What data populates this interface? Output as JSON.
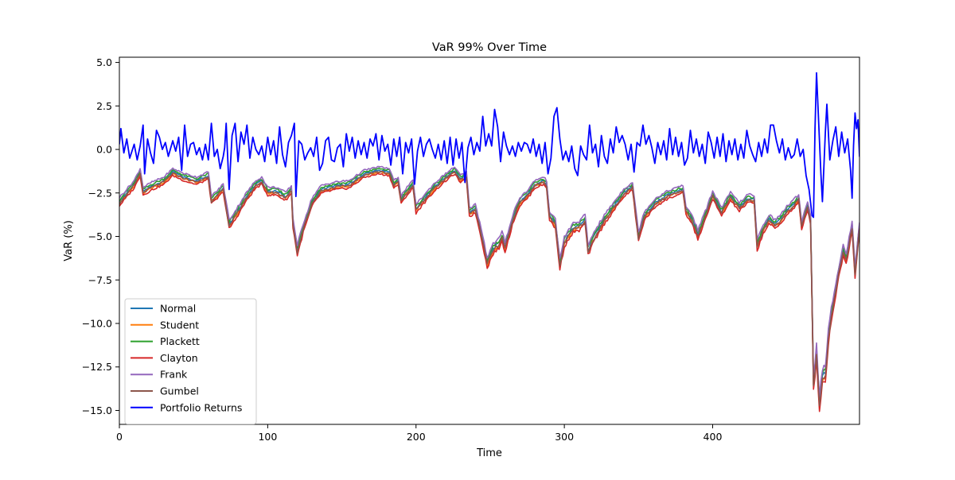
{
  "chart_data": {
    "type": "line",
    "title": "VaR 99% Over Time",
    "xlabel": "Time",
    "ylabel": "VaR (%)",
    "xlim": [
      0,
      499
    ],
    "ylim": [
      -15.8,
      5.3
    ],
    "x_ticks": [
      0,
      100,
      200,
      300,
      400
    ],
    "x_tick_labels": [
      "0",
      "100",
      "200",
      "300",
      "400"
    ],
    "y_ticks": [
      5.0,
      2.5,
      0.0,
      -2.5,
      -5.0,
      -7.5,
      -10.0,
      -12.5,
      -15.0
    ],
    "y_tick_labels": [
      "5.0",
      "2.5",
      "0.0",
      "−2.5",
      "−5.0",
      "−7.5",
      "−10.0",
      "−12.5",
      "−15.0"
    ],
    "grid": false,
    "legend_position": "lower-left",
    "series_colors": {
      "Normal": "#1f77b4",
      "Student": "#ff7f0e",
      "Plackett": "#2ca02c",
      "Clayton": "#d62728",
      "Frank": "#9467bd",
      "Gumbel": "#8c564b",
      "Portfolio Returns": "#0000ff"
    },
    "var_base_anchors": [
      [
        0,
        -3.0
      ],
      [
        6,
        -2.4
      ],
      [
        10,
        -2.0
      ],
      [
        14,
        -1.3
      ],
      [
        16,
        -2.4
      ],
      [
        22,
        -2.1
      ],
      [
        30,
        -1.8
      ],
      [
        36,
        -1.3
      ],
      [
        44,
        -1.6
      ],
      [
        52,
        -1.8
      ],
      [
        60,
        -1.5
      ],
      [
        62,
        -2.9
      ],
      [
        66,
        -2.6
      ],
      [
        70,
        -2.2
      ],
      [
        74,
        -4.3
      ],
      [
        78,
        -3.8
      ],
      [
        85,
        -2.8
      ],
      [
        92,
        -2.0
      ],
      [
        96,
        -1.8
      ],
      [
        100,
        -2.4
      ],
      [
        106,
        -2.4
      ],
      [
        112,
        -2.7
      ],
      [
        116,
        -2.3
      ],
      [
        117,
        -4.2
      ],
      [
        120,
        -5.8
      ],
      [
        124,
        -4.5
      ],
      [
        130,
        -3.0
      ],
      [
        136,
        -2.3
      ],
      [
        145,
        -2.1
      ],
      [
        155,
        -2.0
      ],
      [
        165,
        -1.4
      ],
      [
        175,
        -1.2
      ],
      [
        182,
        -1.3
      ],
      [
        185,
        -2.0
      ],
      [
        188,
        -1.8
      ],
      [
        190,
        -2.9
      ],
      [
        193,
        -2.5
      ],
      [
        198,
        -2.0
      ],
      [
        200,
        -3.4
      ],
      [
        204,
        -3.0
      ],
      [
        212,
        -2.2
      ],
      [
        220,
        -1.6
      ],
      [
        226,
        -1.2
      ],
      [
        230,
        -1.7
      ],
      [
        234,
        -1.5
      ],
      [
        236,
        -3.6
      ],
      [
        240,
        -3.4
      ],
      [
        244,
        -4.8
      ],
      [
        248,
        -6.5
      ],
      [
        252,
        -5.7
      ],
      [
        256,
        -5.4
      ],
      [
        258,
        -5.0
      ],
      [
        260,
        -5.6
      ],
      [
        266,
        -3.8
      ],
      [
        270,
        -3.0
      ],
      [
        276,
        -2.5
      ],
      [
        280,
        -2.0
      ],
      [
        286,
        -1.8
      ],
      [
        288,
        -2.0
      ],
      [
        290,
        -3.8
      ],
      [
        294,
        -4.3
      ],
      [
        297,
        -6.6
      ],
      [
        300,
        -5.3
      ],
      [
        306,
        -4.5
      ],
      [
        310,
        -4.4
      ],
      [
        314,
        -4.0
      ],
      [
        316,
        -5.8
      ],
      [
        320,
        -5.0
      ],
      [
        328,
        -3.9
      ],
      [
        334,
        -3.2
      ],
      [
        340,
        -2.5
      ],
      [
        346,
        -2.1
      ],
      [
        348,
        -3.6
      ],
      [
        350,
        -5.0
      ],
      [
        354,
        -3.8
      ],
      [
        362,
        -3.0
      ],
      [
        370,
        -2.6
      ],
      [
        376,
        -2.4
      ],
      [
        380,
        -2.3
      ],
      [
        382,
        -3.5
      ],
      [
        386,
        -4.0
      ],
      [
        390,
        -4.9
      ],
      [
        396,
        -3.6
      ],
      [
        400,
        -2.6
      ],
      [
        406,
        -3.6
      ],
      [
        412,
        -2.7
      ],
      [
        418,
        -3.3
      ],
      [
        424,
        -2.8
      ],
      [
        428,
        -2.9
      ],
      [
        430,
        -5.5
      ],
      [
        434,
        -4.6
      ],
      [
        438,
        -4.0
      ],
      [
        442,
        -4.3
      ],
      [
        446,
        -4.0
      ],
      [
        450,
        -3.5
      ],
      [
        454,
        -3.2
      ],
      [
        458,
        -2.8
      ],
      [
        460,
        -4.4
      ],
      [
        464,
        -3.2
      ],
      [
        466,
        -4.0
      ],
      [
        468,
        -13.5
      ],
      [
        470,
        -11.6
      ],
      [
        472,
        -14.6
      ],
      [
        474,
        -13.0
      ],
      [
        476,
        -12.9
      ],
      [
        478,
        -10.8
      ],
      [
        480,
        -9.5
      ],
      [
        484,
        -7.5
      ],
      [
        488,
        -5.8
      ],
      [
        490,
        -6.3
      ],
      [
        494,
        -4.4
      ],
      [
        496,
        -7.0
      ],
      [
        499,
        -4.4
      ]
    ],
    "var_spread": [
      0.0,
      -0.15,
      0.15,
      -0.3,
      0.3,
      -0.1
    ],
    "portfolio_anchors": [
      [
        0,
        0.3
      ],
      [
        1,
        1.2
      ],
      [
        3,
        -0.2
      ],
      [
        5,
        0.6
      ],
      [
        7,
        -0.5
      ],
      [
        10,
        0.3
      ],
      [
        12,
        -0.6
      ],
      [
        14,
        0.2
      ],
      [
        16,
        1.4
      ],
      [
        17,
        -1.4
      ],
      [
        19,
        0.6
      ],
      [
        21,
        -0.2
      ],
      [
        23,
        -0.8
      ],
      [
        25,
        1.1
      ],
      [
        27,
        0.7
      ],
      [
        29,
        0.0
      ],
      [
        31,
        0.4
      ],
      [
        33,
        -0.4
      ],
      [
        36,
        0.5
      ],
      [
        38,
        -0.1
      ],
      [
        40,
        0.7
      ],
      [
        42,
        -1.2
      ],
      [
        44,
        1.4
      ],
      [
        46,
        -0.4
      ],
      [
        48,
        0.3
      ],
      [
        50,
        0.4
      ],
      [
        52,
        -0.3
      ],
      [
        54,
        0.1
      ],
      [
        56,
        -0.6
      ],
      [
        58,
        0.3
      ],
      [
        60,
        -0.6
      ],
      [
        62,
        1.5
      ],
      [
        64,
        -0.4
      ],
      [
        66,
        0.0
      ],
      [
        68,
        -1.1
      ],
      [
        70,
        -0.4
      ],
      [
        71,
        0.1
      ],
      [
        72,
        1.5
      ],
      [
        74,
        -2.3
      ],
      [
        76,
        0.8
      ],
      [
        78,
        1.5
      ],
      [
        80,
        -0.7
      ],
      [
        82,
        1.0
      ],
      [
        84,
        0.3
      ],
      [
        86,
        1.4
      ],
      [
        88,
        -0.5
      ],
      [
        90,
        0.7
      ],
      [
        92,
        0.0
      ],
      [
        94,
        -0.3
      ],
      [
        96,
        0.2
      ],
      [
        98,
        -0.7
      ],
      [
        100,
        0.7
      ],
      [
        102,
        -0.3
      ],
      [
        104,
        0.5
      ],
      [
        106,
        -0.8
      ],
      [
        108,
        1.3
      ],
      [
        110,
        -0.3
      ],
      [
        112,
        -1.0
      ],
      [
        114,
        0.4
      ],
      [
        116,
        0.8
      ],
      [
        118,
        1.5
      ],
      [
        119,
        -2.7
      ],
      [
        121,
        0.5
      ],
      [
        123,
        0.3
      ],
      [
        125,
        -0.6
      ],
      [
        127,
        -0.2
      ],
      [
        129,
        0.1
      ],
      [
        131,
        -0.4
      ],
      [
        133,
        0.7
      ],
      [
        135,
        -1.2
      ],
      [
        137,
        -0.8
      ],
      [
        139,
        0.5
      ],
      [
        141,
        0.7
      ],
      [
        143,
        -0.6
      ],
      [
        145,
        -0.7
      ],
      [
        147,
        0.1
      ],
      [
        149,
        0.3
      ],
      [
        151,
        -1.0
      ],
      [
        153,
        0.9
      ],
      [
        155,
        -0.1
      ],
      [
        157,
        0.7
      ],
      [
        159,
        -0.5
      ],
      [
        161,
        0.5
      ],
      [
        163,
        -0.3
      ],
      [
        165,
        0.4
      ],
      [
        167,
        -0.5
      ],
      [
        169,
        0.6
      ],
      [
        171,
        0.2
      ],
      [
        173,
        0.9
      ],
      [
        175,
        -0.6
      ],
      [
        177,
        0.8
      ],
      [
        179,
        -0.1
      ],
      [
        181,
        0.3
      ],
      [
        183,
        -0.9
      ],
      [
        185,
        0.6
      ],
      [
        187,
        -0.4
      ],
      [
        189,
        0.7
      ],
      [
        191,
        -1.4
      ],
      [
        193,
        0.4
      ],
      [
        195,
        -0.2
      ],
      [
        197,
        0.6
      ],
      [
        199,
        -2.0
      ],
      [
        201,
        -0.1
      ],
      [
        203,
        0.7
      ],
      [
        205,
        -0.4
      ],
      [
        207,
        0.3
      ],
      [
        209,
        0.6
      ],
      [
        211,
        0.0
      ],
      [
        213,
        -0.5
      ],
      [
        215,
        0.3
      ],
      [
        217,
        -0.6
      ],
      [
        219,
        0.5
      ],
      [
        221,
        -0.8
      ],
      [
        223,
        0.7
      ],
      [
        225,
        -0.9
      ],
      [
        227,
        0.6
      ],
      [
        229,
        -0.5
      ],
      [
        231,
        0.4
      ],
      [
        233,
        -1.9
      ],
      [
        235,
        0.1
      ],
      [
        237,
        0.7
      ],
      [
        239,
        -0.3
      ],
      [
        241,
        0.4
      ],
      [
        243,
        -0.1
      ],
      [
        245,
        1.9
      ],
      [
        247,
        0.2
      ],
      [
        249,
        0.9
      ],
      [
        251,
        0.2
      ],
      [
        253,
        2.3
      ],
      [
        255,
        1.3
      ],
      [
        257,
        -0.7
      ],
      [
        259,
        1.0
      ],
      [
        261,
        0.2
      ],
      [
        263,
        -0.3
      ],
      [
        265,
        0.2
      ],
      [
        267,
        -0.4
      ],
      [
        269,
        0.4
      ],
      [
        271,
        -0.1
      ],
      [
        273,
        0.4
      ],
      [
        275,
        0.3
      ],
      [
        277,
        -0.2
      ],
      [
        279,
        0.6
      ],
      [
        281,
        -0.4
      ],
      [
        283,
        0.3
      ],
      [
        285,
        -0.8
      ],
      [
        287,
        0.4
      ],
      [
        289,
        -1.4
      ],
      [
        291,
        -0.5
      ],
      [
        293,
        1.9
      ],
      [
        295,
        2.4
      ],
      [
        297,
        0.6
      ],
      [
        299,
        -0.6
      ],
      [
        301,
        -0.1
      ],
      [
        303,
        -0.7
      ],
      [
        305,
        0.2
      ],
      [
        307,
        -1.1
      ],
      [
        309,
        -1.5
      ],
      [
        311,
        0.2
      ],
      [
        313,
        -0.3
      ],
      [
        315,
        -0.6
      ],
      [
        317,
        1.4
      ],
      [
        319,
        -0.2
      ],
      [
        321,
        0.3
      ],
      [
        323,
        -1.0
      ],
      [
        325,
        0.8
      ],
      [
        327,
        -0.4
      ],
      [
        329,
        -0.8
      ],
      [
        331,
        0.6
      ],
      [
        333,
        -0.2
      ],
      [
        335,
        1.3
      ],
      [
        337,
        0.4
      ],
      [
        339,
        0.8
      ],
      [
        341,
        0.3
      ],
      [
        343,
        -0.6
      ],
      [
        345,
        0.3
      ],
      [
        347,
        -1.3
      ],
      [
        349,
        0.4
      ],
      [
        351,
        0.2
      ],
      [
        353,
        1.4
      ],
      [
        355,
        0.3
      ],
      [
        357,
        0.8
      ],
      [
        359,
        0.1
      ],
      [
        361,
        -0.8
      ],
      [
        363,
        0.4
      ],
      [
        365,
        -0.3
      ],
      [
        367,
        0.5
      ],
      [
        369,
        -0.6
      ],
      [
        371,
        1.2
      ],
      [
        373,
        -0.3
      ],
      [
        375,
        0.7
      ],
      [
        377,
        -0.4
      ],
      [
        379,
        0.4
      ],
      [
        381,
        -0.9
      ],
      [
        383,
        -0.5
      ],
      [
        385,
        1.1
      ],
      [
        387,
        -0.2
      ],
      [
        389,
        0.6
      ],
      [
        391,
        -0.4
      ],
      [
        393,
        0.3
      ],
      [
        395,
        -0.8
      ],
      [
        397,
        1.0
      ],
      [
        399,
        0.4
      ],
      [
        401,
        -0.5
      ],
      [
        403,
        0.7
      ],
      [
        405,
        -0.4
      ],
      [
        407,
        0.9
      ],
      [
        409,
        -0.7
      ],
      [
        411,
        0.5
      ],
      [
        413,
        -0.3
      ],
      [
        415,
        0.6
      ],
      [
        417,
        -0.6
      ],
      [
        419,
        0.3
      ],
      [
        421,
        -0.5
      ],
      [
        423,
        1.1
      ],
      [
        425,
        0.2
      ],
      [
        427,
        -0.3
      ],
      [
        429,
        -0.7
      ],
      [
        431,
        0.4
      ],
      [
        433,
        -0.4
      ],
      [
        435,
        0.6
      ],
      [
        437,
        -0.2
      ],
      [
        439,
        1.4
      ],
      [
        441,
        1.4
      ],
      [
        443,
        0.5
      ],
      [
        445,
        -0.2
      ],
      [
        447,
        0.6
      ],
      [
        449,
        -0.6
      ],
      [
        451,
        0.1
      ],
      [
        453,
        -0.5
      ],
      [
        455,
        -0.3
      ],
      [
        457,
        0.6
      ],
      [
        459,
        -0.4
      ],
      [
        461,
        0.0
      ],
      [
        463,
        -1.5
      ],
      [
        465,
        -2.3
      ],
      [
        467,
        -3.8
      ],
      [
        468,
        -3.9
      ],
      [
        469,
        1.2
      ],
      [
        470,
        4.4
      ],
      [
        471,
        2.5
      ],
      [
        473,
        -1.4
      ],
      [
        474,
        -3.0
      ],
      [
        476,
        1.0
      ],
      [
        477,
        2.6
      ],
      [
        479,
        -0.6
      ],
      [
        481,
        0.5
      ],
      [
        483,
        1.3
      ],
      [
        485,
        -0.4
      ],
      [
        487,
        1.0
      ],
      [
        489,
        -0.2
      ],
      [
        491,
        0.6
      ],
      [
        493,
        -1.2
      ],
      [
        494,
        -2.8
      ],
      [
        495,
        0.2
      ],
      [
        496,
        2.1
      ],
      [
        497,
        1.2
      ],
      [
        498,
        1.7
      ],
      [
        499,
        -0.4
      ],
      [
        500,
        0.6
      ],
      [
        502,
        0.3
      ]
    ],
    "series": [
      {
        "name": "Normal"
      },
      {
        "name": "Student"
      },
      {
        "name": "Plackett"
      },
      {
        "name": "Clayton"
      },
      {
        "name": "Frank"
      },
      {
        "name": "Gumbel"
      },
      {
        "name": "Portfolio Returns"
      }
    ]
  }
}
